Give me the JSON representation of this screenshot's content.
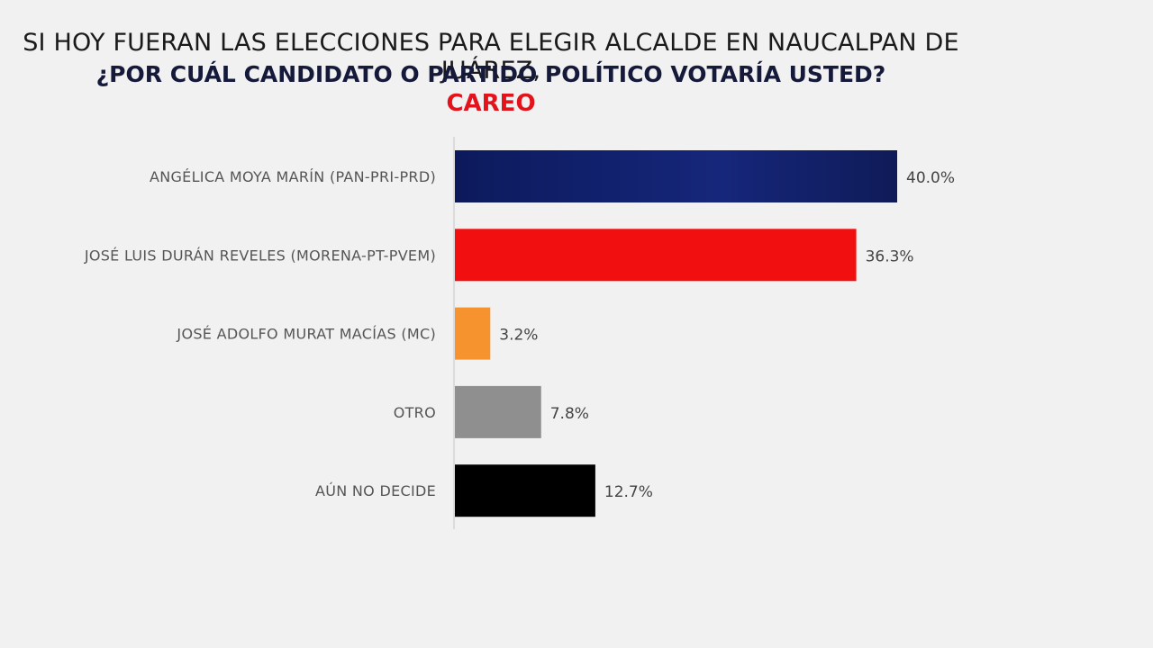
{
  "title": {
    "line1": "SI HOY FUERAN LAS ELECCIONES PARA ELEGIR ALCALDE EN NAUCALPAN DE JUÁREZ,",
    "line2": "¿POR CUÁL CANDIDATO O PARTIDO POLÍTICO VOTARÍA USTED?",
    "line3": "CAREO"
  },
  "colors": {
    "title_accent": "#e3121b",
    "bars": [
      "#13206b",
      "#f10f10",
      "#f7932f",
      "#8f8f8f",
      "#000000"
    ]
  },
  "chart_data": {
    "type": "bar",
    "orientation": "horizontal",
    "title": "SI HOY FUERAN LAS ELECCIONES PARA ELEGIR ALCALDE EN NAUCALPAN DE JUÁREZ, ¿POR CUÁL CANDIDATO O PARTIDO POLÍTICO VOTARÍA USTED? CAREO",
    "categories": [
      "ANGÉLICA MOYA MARÍN (PAN-PRI-PRD)",
      "JOSÉ LUIS DURÁN REVELES (MORENA-PT-PVEM)",
      "JOSÉ ADOLFO MURAT MACÍAS (MC)",
      "OTRO",
      "AÚN NO DECIDE"
    ],
    "values": [
      40.0,
      36.3,
      3.2,
      7.8,
      12.7
    ],
    "value_labels": [
      "40.0%",
      "36.3%",
      "3.2%",
      "7.8%",
      "12.7%"
    ],
    "xlabel": "",
    "ylabel": "",
    "xlim": [
      0,
      40
    ],
    "grid": false,
    "legend": "none"
  }
}
